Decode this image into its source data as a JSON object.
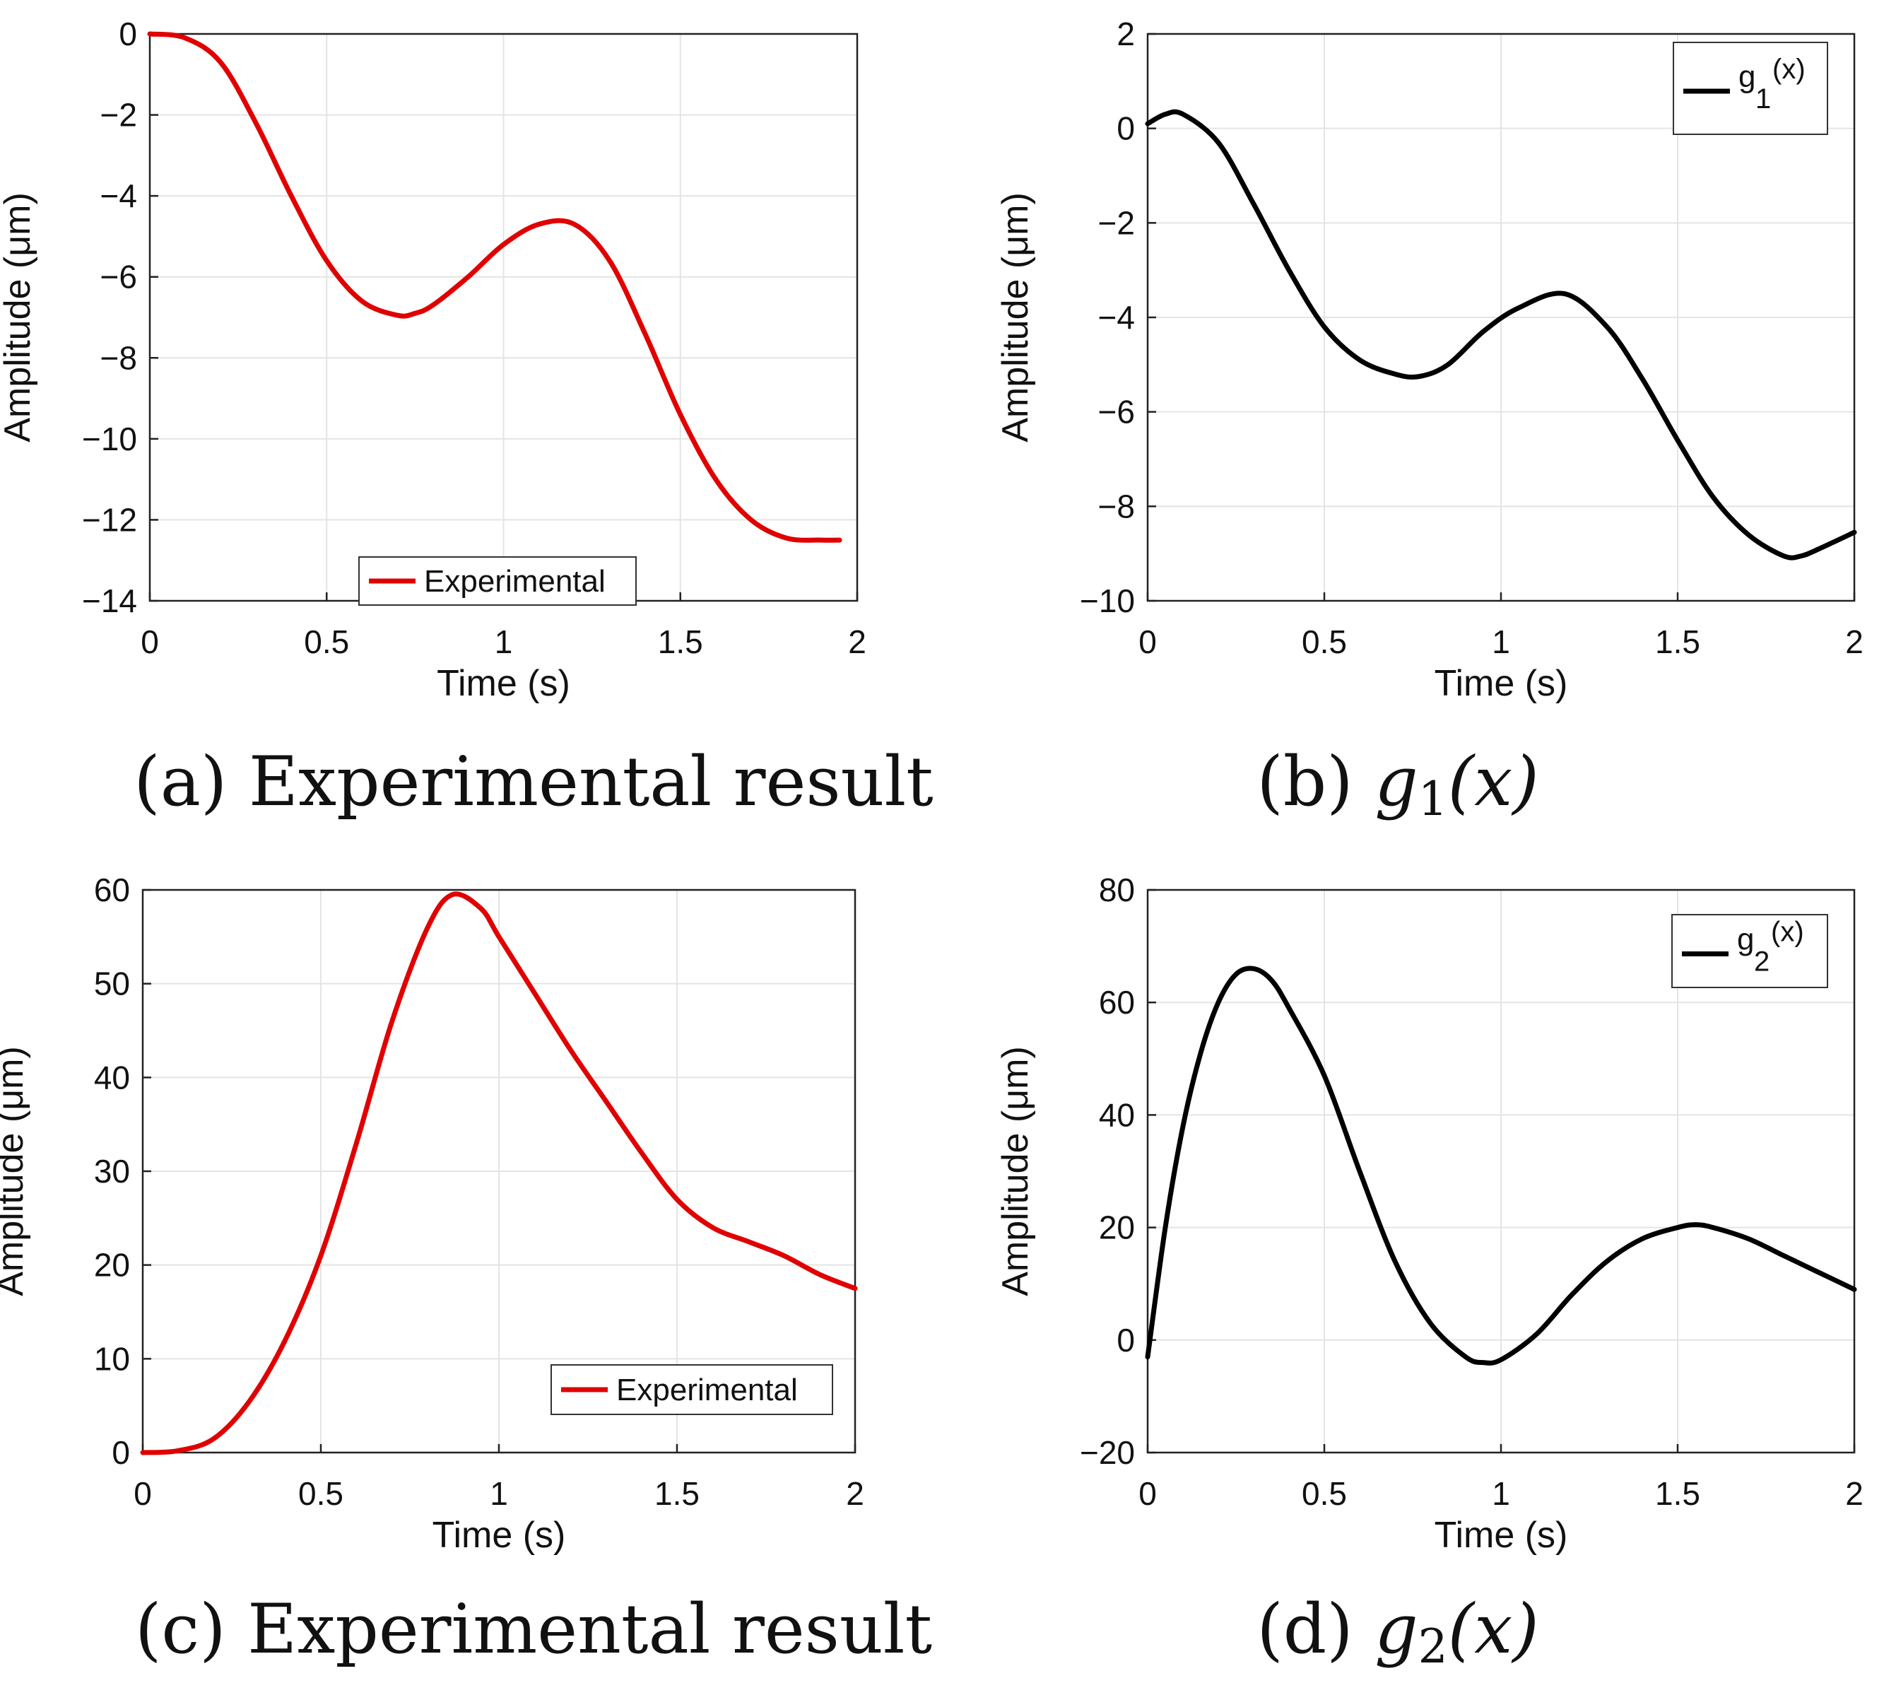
{
  "chart_data": [
    {
      "id": "a",
      "type": "line",
      "title": "",
      "xlabel": "Time (s)",
      "ylabel": "Amplitude (μm)",
      "xlim": [
        0,
        2
      ],
      "ylim": [
        -14,
        0
      ],
      "xticks": [
        "0",
        "0.5",
        "1",
        "1.5",
        "2"
      ],
      "yticks": [
        "0",
        "−2",
        "−4",
        "−6",
        "−8",
        "−10",
        "−12",
        "−14"
      ],
      "xtick_values": [
        0,
        0.5,
        1,
        1.5,
        2
      ],
      "ytick_values": [
        0,
        -2,
        -4,
        -6,
        -8,
        -10,
        -12,
        -14
      ],
      "grid": true,
      "legend": {
        "placement": "bottom-center",
        "label": "Experimental"
      },
      "series": [
        {
          "name": "Experimental",
          "color": "#e00000",
          "x": [
            0,
            0.1,
            0.2,
            0.3,
            0.4,
            0.5,
            0.6,
            0.7,
            0.75,
            0.8,
            0.9,
            1.0,
            1.1,
            1.2,
            1.3,
            1.4,
            1.5,
            1.6,
            1.7,
            1.8,
            1.9,
            1.95
          ],
          "y": [
            0,
            -0.1,
            -0.7,
            -2.2,
            -4.0,
            -5.6,
            -6.6,
            -6.95,
            -6.9,
            -6.7,
            -6.0,
            -5.2,
            -4.7,
            -4.7,
            -5.6,
            -7.4,
            -9.4,
            -11.0,
            -12.0,
            -12.45,
            -12.5,
            -12.5
          ]
        }
      ],
      "caption": {
        "label": "(a)",
        "text": "Experimental result"
      }
    },
    {
      "id": "b",
      "type": "line",
      "title": "",
      "xlabel": "Time (s)",
      "ylabel": "Amplitude (μm)",
      "xlim": [
        0,
        2
      ],
      "ylim": [
        -10,
        2
      ],
      "xticks": [
        "0",
        "0.5",
        "1",
        "1.5",
        "2"
      ],
      "yticks": [
        "2",
        "0",
        "−2",
        "−4",
        "−6",
        "−8",
        "−10"
      ],
      "xtick_values": [
        0,
        0.5,
        1,
        1.5,
        2
      ],
      "ytick_values": [
        2,
        0,
        -2,
        -4,
        -6,
        -8,
        -10
      ],
      "grid": true,
      "legend": {
        "placement": "top-right",
        "label": "g",
        "sub": "1",
        "sup": "(x)"
      },
      "series": [
        {
          "name": "g1(x)",
          "color": "#000000",
          "x": [
            0,
            0.05,
            0.1,
            0.2,
            0.3,
            0.4,
            0.5,
            0.6,
            0.7,
            0.77,
            0.85,
            0.95,
            1.05,
            1.18,
            1.3,
            1.4,
            1.5,
            1.6,
            1.7,
            1.8,
            1.85,
            1.9,
            2.0
          ],
          "y": [
            0.1,
            0.3,
            0.3,
            -0.3,
            -1.6,
            -3.0,
            -4.2,
            -4.9,
            -5.2,
            -5.25,
            -5.0,
            -4.3,
            -3.8,
            -3.5,
            -4.2,
            -5.3,
            -6.6,
            -7.8,
            -8.6,
            -9.05,
            -9.05,
            -8.9,
            -8.55
          ]
        }
      ],
      "caption": {
        "label": "(b)",
        "math": "g",
        "sub": "1",
        "arg": "(x)"
      }
    },
    {
      "id": "c",
      "type": "line",
      "title": "",
      "xlabel": "Time (s)",
      "ylabel": "Amplitude (μm)",
      "xlim": [
        0,
        2
      ],
      "ylim": [
        0,
        60
      ],
      "xticks": [
        "0",
        "0.5",
        "1",
        "1.5",
        "2"
      ],
      "yticks": [
        "60",
        "50",
        "40",
        "30",
        "20",
        "10",
        "0"
      ],
      "xtick_values": [
        0,
        0.5,
        1,
        1.5,
        2
      ],
      "ytick_values": [
        60,
        50,
        40,
        30,
        20,
        10,
        0
      ],
      "grid": true,
      "legend": {
        "placement": "bottom-right",
        "label": "Experimental"
      },
      "series": [
        {
          "name": "Experimental",
          "color": "#e00000",
          "x": [
            0,
            0.1,
            0.2,
            0.3,
            0.4,
            0.5,
            0.6,
            0.7,
            0.8,
            0.87,
            0.95,
            1.0,
            1.1,
            1.2,
            1.3,
            1.4,
            1.5,
            1.6,
            1.7,
            1.8,
            1.9,
            2.0
          ],
          "y": [
            0,
            0.2,
            1.5,
            5.5,
            12.0,
            21.0,
            33.0,
            46.0,
            56.0,
            59.5,
            58.0,
            55.0,
            49.0,
            43.0,
            37.5,
            32.0,
            27.0,
            24.0,
            22.5,
            21.0,
            19.0,
            17.5
          ]
        }
      ],
      "caption": {
        "label": "(c)",
        "text": "Experimental result"
      }
    },
    {
      "id": "d",
      "type": "line",
      "title": "",
      "xlabel": "Time (s)",
      "ylabel": "Amplitude (μm)",
      "xlim": [
        0,
        2
      ],
      "ylim": [
        -20,
        80
      ],
      "xticks": [
        "0",
        "0.5",
        "1",
        "1.5",
        "2"
      ],
      "yticks": [
        "80",
        "60",
        "40",
        "20",
        "0",
        "−20"
      ],
      "xtick_values": [
        0,
        0.5,
        1,
        1.5,
        2
      ],
      "ytick_values": [
        80,
        60,
        40,
        20,
        0,
        -20
      ],
      "grid": true,
      "legend": {
        "placement": "top-right",
        "label": "g",
        "sub": "2",
        "sup": "(x)"
      },
      "series": [
        {
          "name": "g2(x)",
          "color": "#000000",
          "x": [
            0,
            0.05,
            0.1,
            0.15,
            0.2,
            0.25,
            0.3,
            0.35,
            0.4,
            0.5,
            0.6,
            0.7,
            0.8,
            0.9,
            0.95,
            1.0,
            1.1,
            1.2,
            1.3,
            1.4,
            1.5,
            1.55,
            1.6,
            1.7,
            1.8,
            1.9,
            2.0
          ],
          "y": [
            -3,
            20,
            38,
            51,
            60,
            65,
            66,
            64,
            59,
            47,
            30,
            14,
            3,
            -3,
            -4,
            -3.5,
            1,
            8,
            14,
            18,
            20,
            20.5,
            20,
            18,
            15,
            12,
            9
          ]
        }
      ],
      "caption": {
        "label": "(d)",
        "math": "g",
        "sub": "2",
        "arg": "(x)"
      }
    }
  ]
}
